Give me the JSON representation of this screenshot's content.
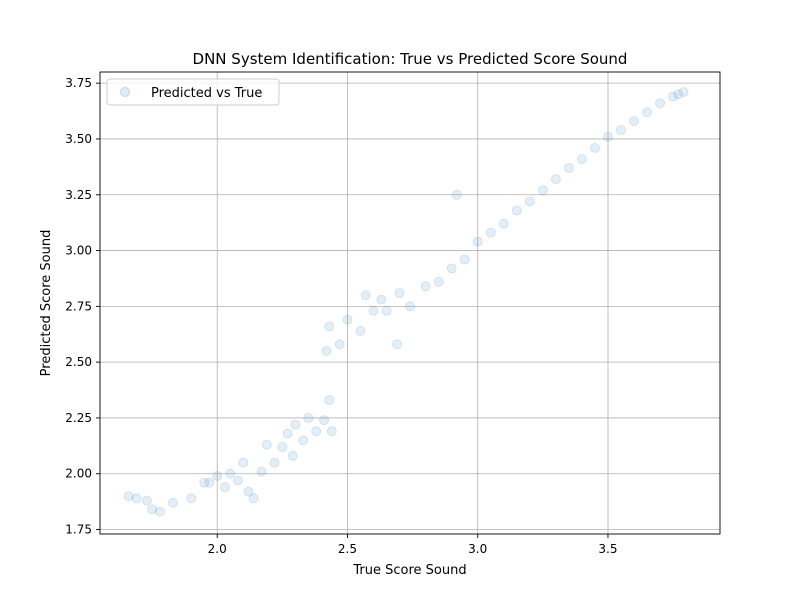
{
  "chart_data": {
    "type": "scatter",
    "title": "DNN System Identification: True vs Predicted Score Sound",
    "xlabel": "True Score Sound",
    "ylabel": "Predicted Score Sound",
    "xlim": [
      1.55,
      3.93
    ],
    "ylim": [
      1.73,
      3.8
    ],
    "xticks": [
      2.0,
      2.5,
      3.0,
      3.5
    ],
    "xtick_labels": [
      "2.0",
      "2.5",
      "3.0",
      "3.5"
    ],
    "yticks": [
      1.75,
      2.0,
      2.25,
      2.5,
      2.75,
      3.0,
      3.25,
      3.5,
      3.75
    ],
    "ytick_labels": [
      "1.75",
      "2.00",
      "2.25",
      "2.50",
      "2.75",
      "3.00",
      "3.25",
      "3.50",
      "3.75"
    ],
    "grid": true,
    "legend": {
      "position": "top-left",
      "entries": [
        "Predicted vs True"
      ]
    },
    "series": [
      {
        "name": "Predicted vs True",
        "color": "#1f77b4",
        "alpha": 0.12,
        "points": [
          [
            1.66,
            1.9
          ],
          [
            1.69,
            1.89
          ],
          [
            1.73,
            1.88
          ],
          [
            1.75,
            1.84
          ],
          [
            1.78,
            1.83
          ],
          [
            1.83,
            1.87
          ],
          [
            1.9,
            1.89
          ],
          [
            1.95,
            1.96
          ],
          [
            1.97,
            1.96
          ],
          [
            2.0,
            1.99
          ],
          [
            2.03,
            1.94
          ],
          [
            2.05,
            2.0
          ],
          [
            2.08,
            1.97
          ],
          [
            2.1,
            2.05
          ],
          [
            2.12,
            1.92
          ],
          [
            2.14,
            1.89
          ],
          [
            2.17,
            2.01
          ],
          [
            2.19,
            2.13
          ],
          [
            2.22,
            2.05
          ],
          [
            2.25,
            2.12
          ],
          [
            2.27,
            2.18
          ],
          [
            2.29,
            2.08
          ],
          [
            2.3,
            2.22
          ],
          [
            2.33,
            2.15
          ],
          [
            2.35,
            2.25
          ],
          [
            2.38,
            2.19
          ],
          [
            2.41,
            2.24
          ],
          [
            2.43,
            2.33
          ],
          [
            2.44,
            2.19
          ],
          [
            2.42,
            2.55
          ],
          [
            2.43,
            2.66
          ],
          [
            2.47,
            2.58
          ],
          [
            2.5,
            2.69
          ],
          [
            2.55,
            2.64
          ],
          [
            2.57,
            2.8
          ],
          [
            2.6,
            2.73
          ],
          [
            2.63,
            2.78
          ],
          [
            2.65,
            2.73
          ],
          [
            2.69,
            2.58
          ],
          [
            2.7,
            2.81
          ],
          [
            2.74,
            2.75
          ],
          [
            2.8,
            2.84
          ],
          [
            2.85,
            2.86
          ],
          [
            2.9,
            2.92
          ],
          [
            2.92,
            3.25
          ],
          [
            2.95,
            2.96
          ],
          [
            3.0,
            3.04
          ],
          [
            3.05,
            3.08
          ],
          [
            3.1,
            3.12
          ],
          [
            3.15,
            3.18
          ],
          [
            3.2,
            3.22
          ],
          [
            3.25,
            3.27
          ],
          [
            3.3,
            3.32
          ],
          [
            3.35,
            3.37
          ],
          [
            3.4,
            3.41
          ],
          [
            3.45,
            3.46
          ],
          [
            3.5,
            3.51
          ],
          [
            3.55,
            3.54
          ],
          [
            3.6,
            3.58
          ],
          [
            3.65,
            3.62
          ],
          [
            3.7,
            3.66
          ],
          [
            3.75,
            3.69
          ],
          [
            3.77,
            3.7
          ],
          [
            3.79,
            3.71
          ]
        ]
      }
    ]
  }
}
